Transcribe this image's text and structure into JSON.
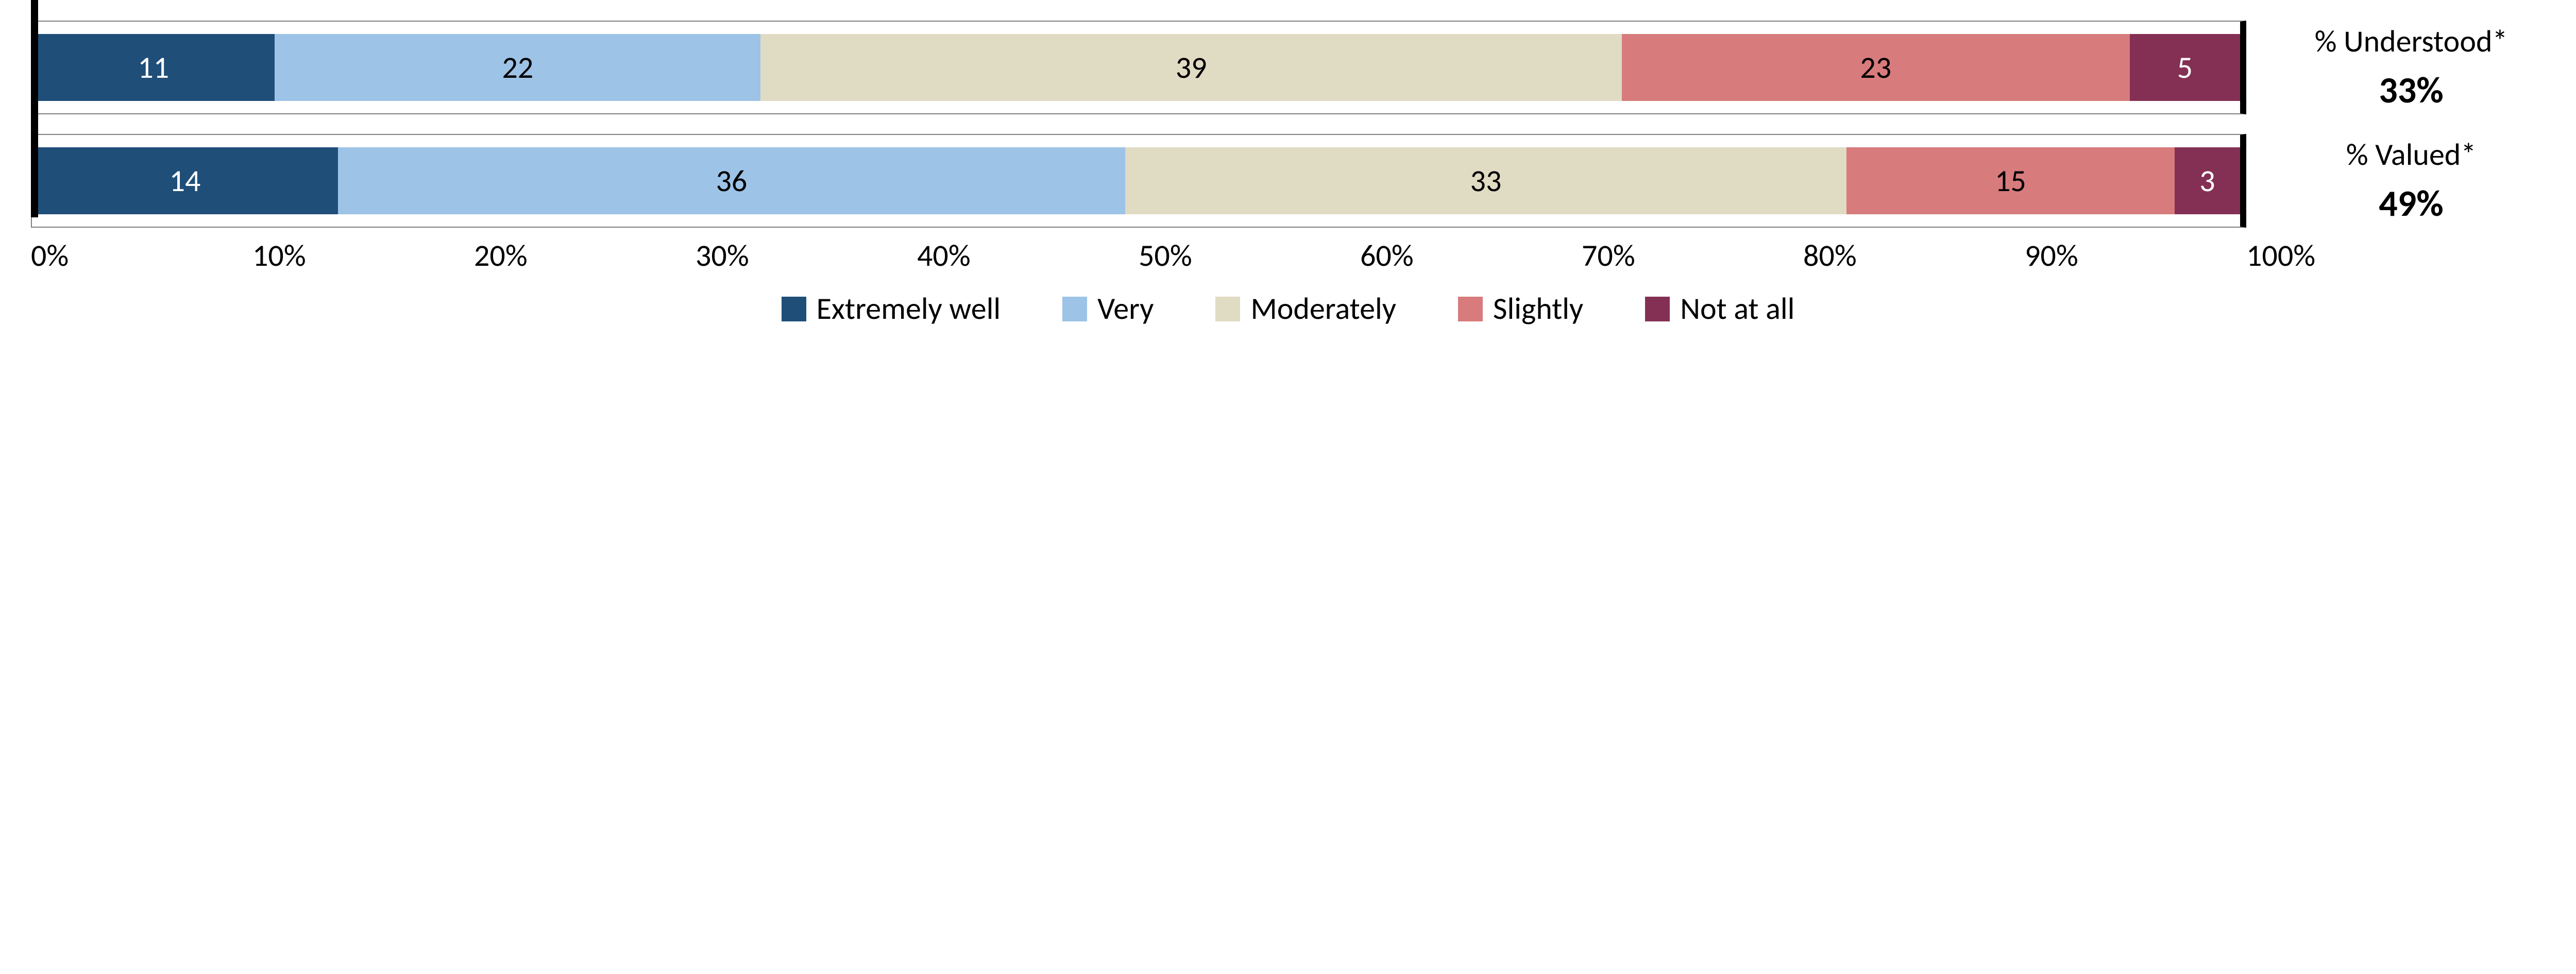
{
  "chart": {
    "type": "stacked-bar-horizontal",
    "xlim": [
      0,
      100
    ],
    "xtick_step": 10,
    "xtick_suffix": "%",
    "background_color": "#ffffff",
    "border_color": "#808080",
    "border_accent_color": "#000000",
    "label_fontsize": 60,
    "value_fontsize": 72,
    "categories": [
      {
        "key": "extremely_well",
        "label": "Extremely well",
        "color": "#1f4e79",
        "text_color": "#ffffff"
      },
      {
        "key": "very",
        "label": "Very",
        "color": "#9dc3e6",
        "text_color": "#000000"
      },
      {
        "key": "moderately",
        "label": "Moderately",
        "color": "#e0dbc3",
        "text_color": "#000000"
      },
      {
        "key": "slightly",
        "label": "Slightly",
        "color": "#d77b7d",
        "text_color": "#000000"
      },
      {
        "key": "not_at_all",
        "label": "Not at all",
        "color": "#843054",
        "text_color": "#ffffff"
      }
    ],
    "rows": [
      {
        "summary_label": "% Understood*",
        "summary_value": "33%",
        "values": {
          "extremely_well": 11,
          "very": 22,
          "moderately": 39,
          "slightly": 23,
          "not_at_all": 5
        }
      },
      {
        "summary_label": "% Valued*",
        "summary_value": "49%",
        "values": {
          "extremely_well": 14,
          "very": 36,
          "moderately": 33,
          "slightly": 15,
          "not_at_all": 3
        }
      }
    ],
    "xticks": [
      "0%",
      "10%",
      "20%",
      "30%",
      "40%",
      "50%",
      "60%",
      "70%",
      "80%",
      "90%",
      "100%"
    ]
  }
}
